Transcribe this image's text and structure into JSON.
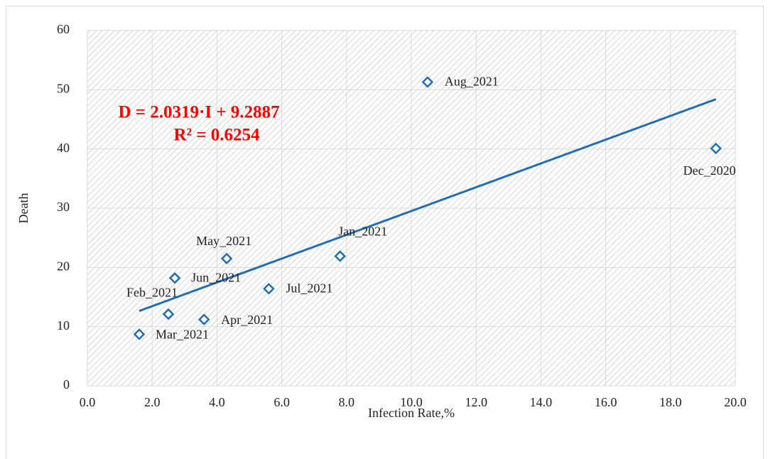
{
  "chart_data": {
    "type": "scatter",
    "x_label": "Infection Rate,%",
    "y_label": "Death",
    "annotations": [
      "D = 2.0319·I + 9.2887",
      "R² = 0.6254"
    ],
    "series": [
      {
        "color": "#1f6eb5",
        "x": [
          1.6,
          2.5,
          2.7,
          3.6,
          4.3,
          5.6,
          7.8,
          10.5,
          19.4
        ],
        "values": [
          8.7,
          12.1,
          18.2,
          11.2,
          21.5,
          16.4,
          21.9,
          51.3,
          40.1
        ],
        "labels": [
          "Mar_2021",
          "Feb_2021",
          "Jun_2021",
          "Apr_2021",
          "May_2021",
          "Jul_2021",
          "Jan_2021",
          "Aug_2021",
          "Dec_2020"
        ]
      }
    ],
    "trendline": "linear",
    "xlim": [
      0,
      20
    ],
    "xticks": [
      {
        "value": 0,
        "label": "0.0"
      },
      {
        "value": 2,
        "label": "2.0"
      },
      {
        "value": 4,
        "label": "4.0"
      },
      {
        "value": 6,
        "label": "6.0"
      },
      {
        "value": 8,
        "label": "8.0"
      },
      {
        "value": 10,
        "label": "10.0"
      },
      {
        "value": 12,
        "label": "12.0"
      },
      {
        "value": 14,
        "label": "14.0"
      },
      {
        "value": 16,
        "label": "16.0"
      },
      {
        "value": 18,
        "label": "18.0"
      },
      {
        "value": 20,
        "label": "20.0"
      }
    ],
    "ylim": [
      0,
      60
    ],
    "yticks": [
      0,
      10,
      20,
      30,
      40,
      50,
      60
    ],
    "grid": true
  }
}
